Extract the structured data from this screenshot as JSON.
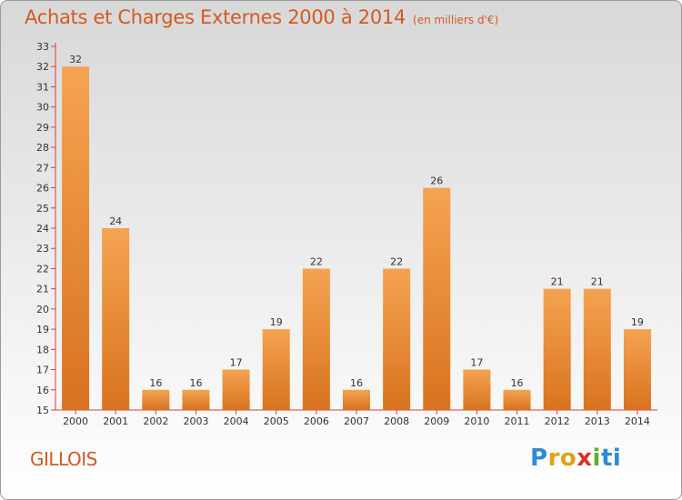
{
  "chart_data": {
    "type": "bar",
    "title": "Achats et Charges Externes 2000 à 2014",
    "subtitle": "(en milliers d'€)",
    "categories": [
      "2000",
      "2001",
      "2002",
      "2003",
      "2004",
      "2005",
      "2006",
      "2007",
      "2008",
      "2009",
      "2010",
      "2011",
      "2012",
      "2013",
      "2014"
    ],
    "values": [
      32,
      24,
      16,
      16,
      17,
      19,
      22,
      16,
      22,
      26,
      17,
      16,
      21,
      21,
      19
    ],
    "ylim": [
      15,
      33
    ],
    "yticks": [
      15,
      16,
      17,
      18,
      19,
      20,
      21,
      22,
      23,
      24,
      25,
      26,
      27,
      28,
      29,
      30,
      31,
      32,
      33
    ],
    "grid": false,
    "bar_color_top": "#f5a352",
    "bar_color_bottom": "#d8731f"
  },
  "place_label": "GILLOIS",
  "logo": [
    "P",
    "r",
    "o",
    "x",
    "i",
    "ti"
  ],
  "colors": {
    "title": "#d35a20",
    "axis": "#e03a3a"
  }
}
